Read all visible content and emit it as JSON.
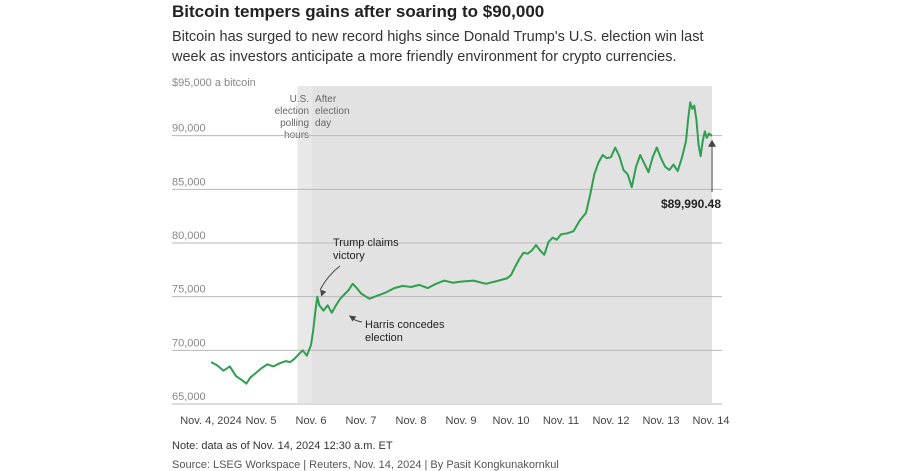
{
  "header": {
    "title": "Bitcoin tempers gains after soaring to $90,000",
    "subtitle": "Bitcoin has surged to new record highs since Donald Trump's U.S. election win last week as investors anticipate a more friendly environment for crypto currencies."
  },
  "footer": {
    "note": "Note: data as of Nov. 14, 2024 12:30 a.m. ET",
    "source": "Source: LSEG Workspace | Reuters, Nov. 14, 2024 | By Pasit Kongkunakornkul"
  },
  "chart_data": {
    "type": "line",
    "title": "Bitcoin tempers gains after soaring to $90,000",
    "ylabel": "$95,000 a bitcoin",
    "ylim": [
      65000,
      95000
    ],
    "yticks": [
      {
        "value": 90000,
        "label": "90,000"
      },
      {
        "value": 85000,
        "label": "85,000"
      },
      {
        "value": 80000,
        "label": "80,000"
      },
      {
        "value": 75000,
        "label": "75,000"
      },
      {
        "value": 70000,
        "label": "70,000"
      },
      {
        "value": 65000,
        "label": "65,000"
      }
    ],
    "xlim": [
      "2024-11-04",
      "2024-11-14"
    ],
    "xticks": [
      {
        "date": "2024-11-04",
        "label": "Nov. 4, 2024"
      },
      {
        "date": "2024-11-05",
        "label": "Nov. 5"
      },
      {
        "date": "2024-11-06",
        "label": "Nov. 6"
      },
      {
        "date": "2024-11-07",
        "label": "Nov. 7"
      },
      {
        "date": "2024-11-08",
        "label": "Nov. 8"
      },
      {
        "date": "2024-11-09",
        "label": "Nov. 9"
      },
      {
        "date": "2024-11-10",
        "label": "Nov. 10"
      },
      {
        "date": "2024-11-11",
        "label": "Nov. 11"
      },
      {
        "date": "2024-11-12",
        "label": "Nov. 12"
      },
      {
        "date": "2024-11-13",
        "label": "Nov. 13"
      },
      {
        "date": "2024-11-14",
        "label": "Nov. 14"
      }
    ],
    "grid": true,
    "line_color": "#2e9e4f",
    "shaded_regions": [
      {
        "start": "2024-11-05 17:30",
        "end": "2024-11-06 00:30",
        "label": "U.S. election polling hours",
        "color": "#e8e8e8"
      },
      {
        "start": "2024-11-06 00:30",
        "end": "2024-11-14 00:30",
        "label": "After election day",
        "color": "#e2e2e2"
      }
    ],
    "annotations": [
      {
        "text": "Trump claims victory",
        "date": "2024-11-06 02:30",
        "value": 75100
      },
      {
        "text": "Harris concedes election",
        "date": "2024-11-06 17:00",
        "value": 73900
      },
      {
        "text": "$89,990.48",
        "date": "2024-11-14 00:30",
        "value": 89990.48
      }
    ],
    "series": [
      {
        "values": [
          {
            "x": "2024-11-04 00:00",
            "y": 68900
          },
          {
            "x": "2024-11-04 03:00",
            "y": 68600
          },
          {
            "x": "2024-11-04 06:00",
            "y": 68100
          },
          {
            "x": "2024-11-04 09:00",
            "y": 68500
          },
          {
            "x": "2024-11-04 12:00",
            "y": 67600
          },
          {
            "x": "2024-11-04 15:00",
            "y": 67200
          },
          {
            "x": "2024-11-04 17:00",
            "y": 66900
          },
          {
            "x": "2024-11-04 19:00",
            "y": 67500
          },
          {
            "x": "2024-11-04 21:00",
            "y": 67800
          },
          {
            "x": "2024-11-05 00:00",
            "y": 68300
          },
          {
            "x": "2024-11-05 03:00",
            "y": 68700
          },
          {
            "x": "2024-11-05 06:00",
            "y": 68500
          },
          {
            "x": "2024-11-05 09:00",
            "y": 68800
          },
          {
            "x": "2024-11-05 12:00",
            "y": 69000
          },
          {
            "x": "2024-11-05 14:00",
            "y": 68900
          },
          {
            "x": "2024-11-05 16:00",
            "y": 69200
          },
          {
            "x": "2024-11-05 18:00",
            "y": 69600
          },
          {
            "x": "2024-11-05 20:00",
            "y": 70000
          },
          {
            "x": "2024-11-05 22:00",
            "y": 69500
          },
          {
            "x": "2024-11-06 00:00",
            "y": 70500
          },
          {
            "x": "2024-11-06 01:00",
            "y": 71800
          },
          {
            "x": "2024-11-06 02:00",
            "y": 73500
          },
          {
            "x": "2024-11-06 03:00",
            "y": 75000
          },
          {
            "x": "2024-11-06 04:00",
            "y": 74200
          },
          {
            "x": "2024-11-06 06:00",
            "y": 73700
          },
          {
            "x": "2024-11-06 08:00",
            "y": 74200
          },
          {
            "x": "2024-11-06 10:00",
            "y": 73500
          },
          {
            "x": "2024-11-06 12:00",
            "y": 74200
          },
          {
            "x": "2024-11-06 14:00",
            "y": 74800
          },
          {
            "x": "2024-11-06 16:00",
            "y": 75200
          },
          {
            "x": "2024-11-06 18:00",
            "y": 75600
          },
          {
            "x": "2024-11-06 20:00",
            "y": 76200
          },
          {
            "x": "2024-11-06 22:00",
            "y": 75800
          },
          {
            "x": "2024-11-07 00:00",
            "y": 75300
          },
          {
            "x": "2024-11-07 04:00",
            "y": 74800
          },
          {
            "x": "2024-11-07 08:00",
            "y": 75100
          },
          {
            "x": "2024-11-07 12:00",
            "y": 75400
          },
          {
            "x": "2024-11-07 16:00",
            "y": 75800
          },
          {
            "x": "2024-11-07 20:00",
            "y": 76000
          },
          {
            "x": "2024-11-08 00:00",
            "y": 75900
          },
          {
            "x": "2024-11-08 04:00",
            "y": 76100
          },
          {
            "x": "2024-11-08 08:00",
            "y": 75800
          },
          {
            "x": "2024-11-08 12:00",
            "y": 76200
          },
          {
            "x": "2024-11-08 16:00",
            "y": 76500
          },
          {
            "x": "2024-11-08 20:00",
            "y": 76300
          },
          {
            "x": "2024-11-09 00:00",
            "y": 76400
          },
          {
            "x": "2024-11-09 06:00",
            "y": 76500
          },
          {
            "x": "2024-11-09 12:00",
            "y": 76200
          },
          {
            "x": "2024-11-09 18:00",
            "y": 76500
          },
          {
            "x": "2024-11-09 22:00",
            "y": 76700
          },
          {
            "x": "2024-11-10 00:00",
            "y": 77000
          },
          {
            "x": "2024-11-10 02:00",
            "y": 77800
          },
          {
            "x": "2024-11-10 04:00",
            "y": 78500
          },
          {
            "x": "2024-11-10 06:00",
            "y": 79100
          },
          {
            "x": "2024-11-10 08:00",
            "y": 79000
          },
          {
            "x": "2024-11-10 10:00",
            "y": 79300
          },
          {
            "x": "2024-11-10 12:00",
            "y": 79800
          },
          {
            "x": "2024-11-10 14:00",
            "y": 79300
          },
          {
            "x": "2024-11-10 16:00",
            "y": 78900
          },
          {
            "x": "2024-11-10 18:00",
            "y": 80100
          },
          {
            "x": "2024-11-10 20:00",
            "y": 80500
          },
          {
            "x": "2024-11-10 22:00",
            "y": 80300
          },
          {
            "x": "2024-11-11 00:00",
            "y": 80800
          },
          {
            "x": "2024-11-11 03:00",
            "y": 80900
          },
          {
            "x": "2024-11-11 06:00",
            "y": 81100
          },
          {
            "x": "2024-11-11 09:00",
            "y": 82100
          },
          {
            "x": "2024-11-11 12:00",
            "y": 82800
          },
          {
            "x": "2024-11-11 14:00",
            "y": 84500
          },
          {
            "x": "2024-11-11 16:00",
            "y": 86400
          },
          {
            "x": "2024-11-11 18:00",
            "y": 87500
          },
          {
            "x": "2024-11-11 20:00",
            "y": 88200
          },
          {
            "x": "2024-11-11 22:00",
            "y": 87900
          },
          {
            "x": "2024-11-12 00:00",
            "y": 88000
          },
          {
            "x": "2024-11-12 02:00",
            "y": 88900
          },
          {
            "x": "2024-11-12 04:00",
            "y": 88100
          },
          {
            "x": "2024-11-12 06:00",
            "y": 86800
          },
          {
            "x": "2024-11-12 08:00",
            "y": 86400
          },
          {
            "x": "2024-11-12 10:00",
            "y": 85200
          },
          {
            "x": "2024-11-12 12:00",
            "y": 87100
          },
          {
            "x": "2024-11-12 14:00",
            "y": 88200
          },
          {
            "x": "2024-11-12 16:00",
            "y": 87400
          },
          {
            "x": "2024-11-12 18:00",
            "y": 86600
          },
          {
            "x": "2024-11-12 20:00",
            "y": 88000
          },
          {
            "x": "2024-11-12 22:00",
            "y": 88900
          },
          {
            "x": "2024-11-13 00:00",
            "y": 87900
          },
          {
            "x": "2024-11-13 02:00",
            "y": 87100
          },
          {
            "x": "2024-11-13 04:00",
            "y": 86800
          },
          {
            "x": "2024-11-13 06:00",
            "y": 87300
          },
          {
            "x": "2024-11-13 08:00",
            "y": 86700
          },
          {
            "x": "2024-11-13 10:00",
            "y": 87900
          },
          {
            "x": "2024-11-13 12:00",
            "y": 89500
          },
          {
            "x": "2024-11-13 13:00",
            "y": 91500
          },
          {
            "x": "2024-11-13 14:00",
            "y": 93100
          },
          {
            "x": "2024-11-13 15:00",
            "y": 92500
          },
          {
            "x": "2024-11-13 16:00",
            "y": 92800
          },
          {
            "x": "2024-11-13 17:00",
            "y": 91500
          },
          {
            "x": "2024-11-13 18:00",
            "y": 89200
          },
          {
            "x": "2024-11-13 19:00",
            "y": 88100
          },
          {
            "x": "2024-11-13 20:00",
            "y": 89500
          },
          {
            "x": "2024-11-13 21:00",
            "y": 90400
          },
          {
            "x": "2024-11-13 22:00",
            "y": 89800
          },
          {
            "x": "2024-11-13 23:00",
            "y": 90200
          },
          {
            "x": "2024-11-14 00:30",
            "y": 89990.48
          }
        ]
      }
    ]
  }
}
